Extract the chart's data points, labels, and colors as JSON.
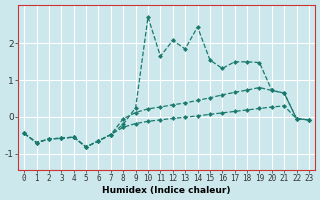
{
  "title": "",
  "xlabel": "Humidex (Indice chaleur)",
  "bg_color": "#cce8ec",
  "grid_color": "#ffffff",
  "line_color": "#1a7a6e",
  "spine_color": "#cc3333",
  "xlim": [
    -0.5,
    23.5
  ],
  "ylim": [
    -1.45,
    3.05
  ],
  "yticks": [
    -1,
    0,
    1,
    2
  ],
  "xticks": [
    0,
    1,
    2,
    3,
    4,
    5,
    6,
    7,
    8,
    9,
    10,
    11,
    12,
    13,
    14,
    15,
    16,
    17,
    18,
    19,
    20,
    21,
    22,
    23
  ],
  "series1_x": [
    0,
    1,
    2,
    3,
    4,
    5,
    6,
    7,
    8,
    9,
    10,
    11,
    12,
    13,
    14,
    15,
    16,
    17,
    18,
    19,
    20,
    21,
    22,
    23
  ],
  "series1_y": [
    -0.45,
    -0.7,
    -0.6,
    -0.58,
    -0.55,
    -0.82,
    -0.65,
    -0.48,
    -0.2,
    0.25,
    2.72,
    1.65,
    2.08,
    1.85,
    2.45,
    1.55,
    1.32,
    1.5,
    1.5,
    1.48,
    0.72,
    0.65,
    -0.05,
    -0.08
  ],
  "series2_x": [
    0,
    1,
    2,
    3,
    4,
    5,
    6,
    7,
    8,
    9,
    10,
    11,
    12,
    13,
    14,
    15,
    16,
    17,
    18,
    19,
    20,
    21,
    22,
    23
  ],
  "series2_y": [
    -0.45,
    -0.7,
    -0.6,
    -0.58,
    -0.55,
    -0.82,
    -0.65,
    -0.48,
    -0.05,
    0.12,
    0.22,
    0.27,
    0.33,
    0.38,
    0.45,
    0.52,
    0.6,
    0.67,
    0.73,
    0.8,
    0.72,
    0.65,
    -0.05,
    -0.08
  ],
  "series3_x": [
    0,
    1,
    2,
    3,
    4,
    5,
    6,
    7,
    8,
    9,
    10,
    11,
    12,
    13,
    14,
    15,
    16,
    17,
    18,
    19,
    20,
    21,
    22,
    23
  ],
  "series3_y": [
    -0.45,
    -0.7,
    -0.6,
    -0.58,
    -0.55,
    -0.82,
    -0.65,
    -0.48,
    -0.28,
    -0.18,
    -0.12,
    -0.08,
    -0.04,
    -0.01,
    0.03,
    0.07,
    0.11,
    0.15,
    0.19,
    0.23,
    0.27,
    0.3,
    -0.05,
    -0.08
  ],
  "xlabel_fontsize": 6.5,
  "tick_fontsize": 5.5,
  "ytick_fontsize": 6.5,
  "linewidth": 0.9,
  "markersize": 2.5
}
